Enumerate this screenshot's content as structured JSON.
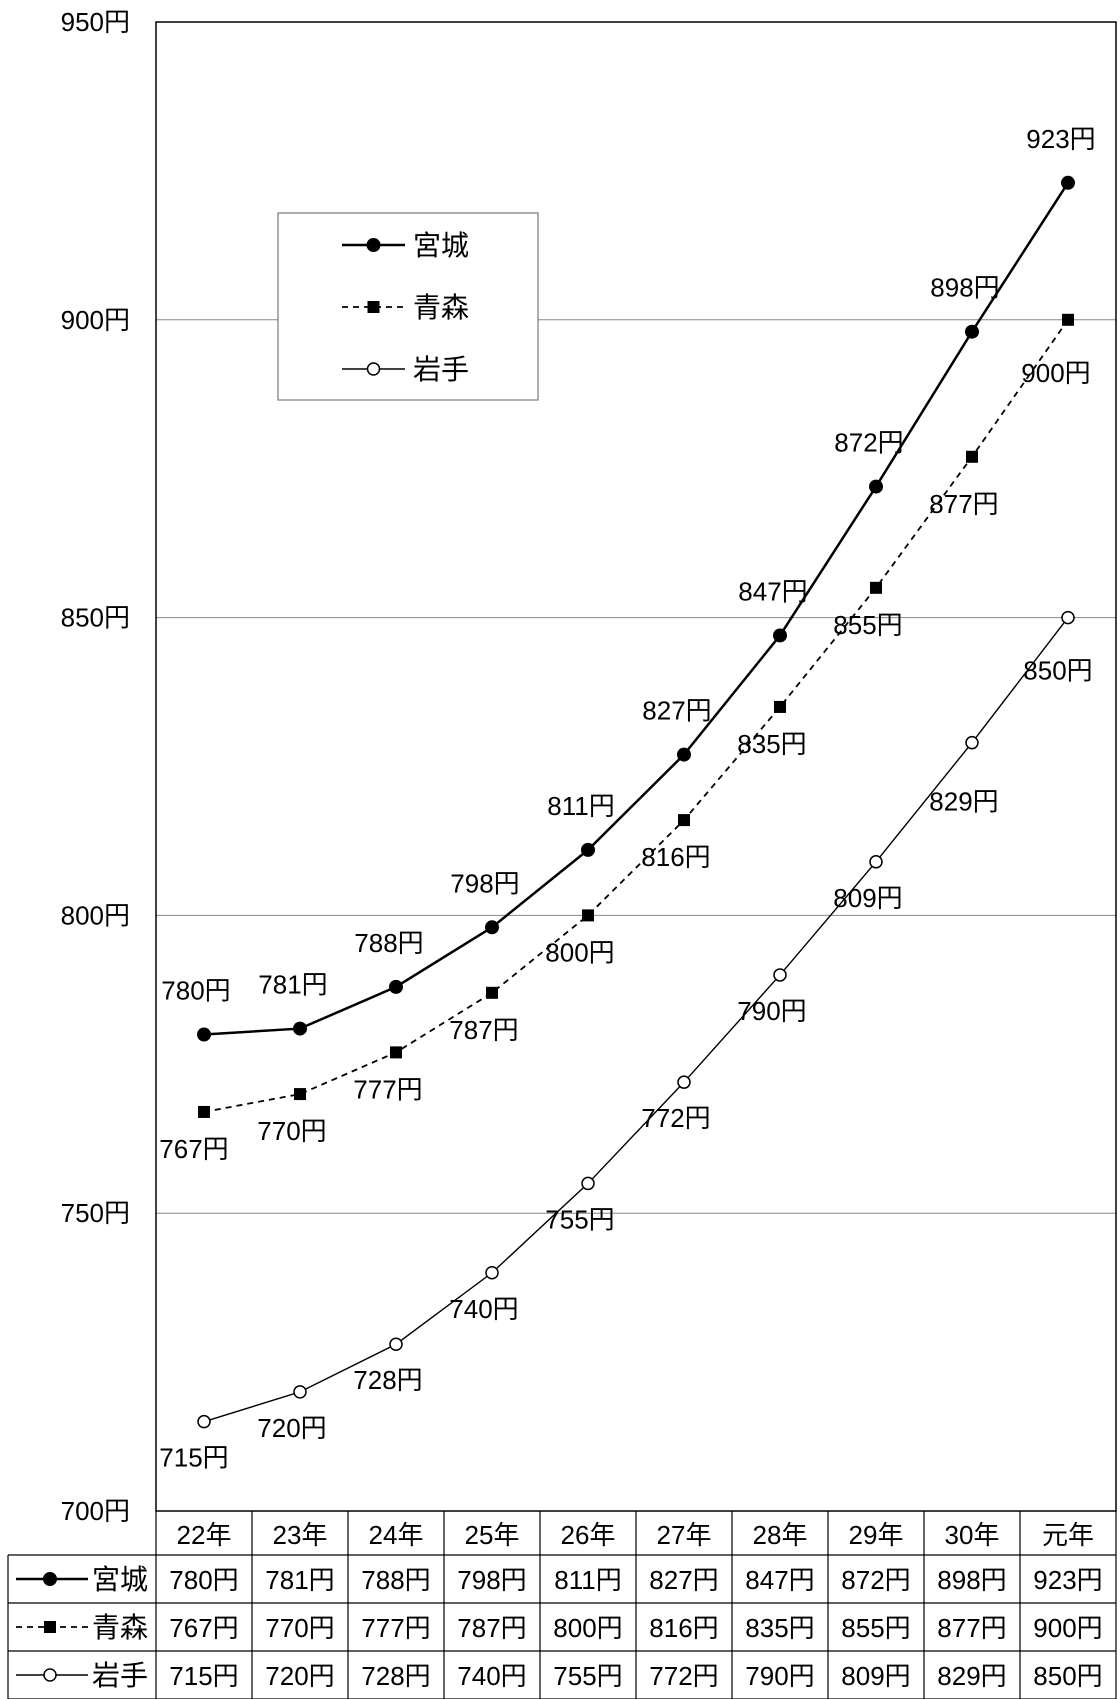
{
  "chart_data": {
    "type": "line",
    "categories": [
      "22年",
      "23年",
      "24年",
      "25年",
      "26年",
      "27年",
      "28年",
      "29年",
      "30年",
      "元年"
    ],
    "y_ticks": [
      "700円",
      "750円",
      "800円",
      "850円",
      "900円",
      "950円"
    ],
    "ylim": [
      700,
      950
    ],
    "unit": "円",
    "grid": true,
    "legend_position": "top-left",
    "data_table": true,
    "series": [
      {
        "name": "宮城",
        "marker": "filled-circle",
        "line": "solid-thick",
        "color": "#000000",
        "values": [
          780,
          781,
          788,
          798,
          811,
          827,
          847,
          872,
          898,
          923
        ],
        "labels": [
          "780円",
          "781円",
          "788円",
          "798円",
          "811円",
          "827円",
          "847円",
          "872円",
          "898円",
          "923円"
        ]
      },
      {
        "name": "青森",
        "marker": "filled-square",
        "line": "dashed",
        "color": "#000000",
        "values": [
          767,
          770,
          777,
          787,
          800,
          816,
          835,
          855,
          877,
          900
        ],
        "labels": [
          "767円",
          "770円",
          "777円",
          "787円",
          "800円",
          "816円",
          "835円",
          "855円",
          "877円",
          "900円"
        ]
      },
      {
        "name": "岩手",
        "marker": "open-circle",
        "line": "solid-thin",
        "color": "#000000",
        "values": [
          715,
          720,
          728,
          740,
          755,
          772,
          790,
          809,
          829,
          850
        ],
        "labels": [
          "715円",
          "720円",
          "728円",
          "740円",
          "755円",
          "772円",
          "790円",
          "809円",
          "829円",
          "850円"
        ]
      }
    ]
  }
}
